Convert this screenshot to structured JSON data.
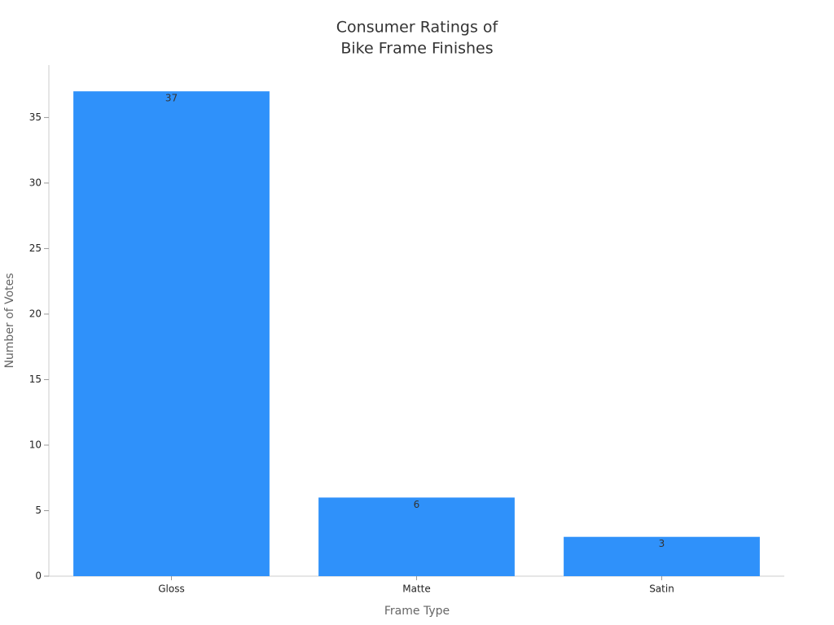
{
  "chart_data": {
    "type": "bar",
    "title": [
      "Consumer Ratings of",
      "Bike Frame Finishes"
    ],
    "x_label": "Frame Type",
    "y_label": "Number of Votes",
    "categories": [
      "Gloss",
      "Matte",
      "Satin"
    ],
    "values": [
      37,
      6,
      3
    ],
    "color": "#2f91fa",
    "ylim": [
      0,
      39
    ],
    "yticks": [
      0,
      5,
      10,
      15,
      20,
      25,
      30,
      35
    ],
    "grid": false
  }
}
